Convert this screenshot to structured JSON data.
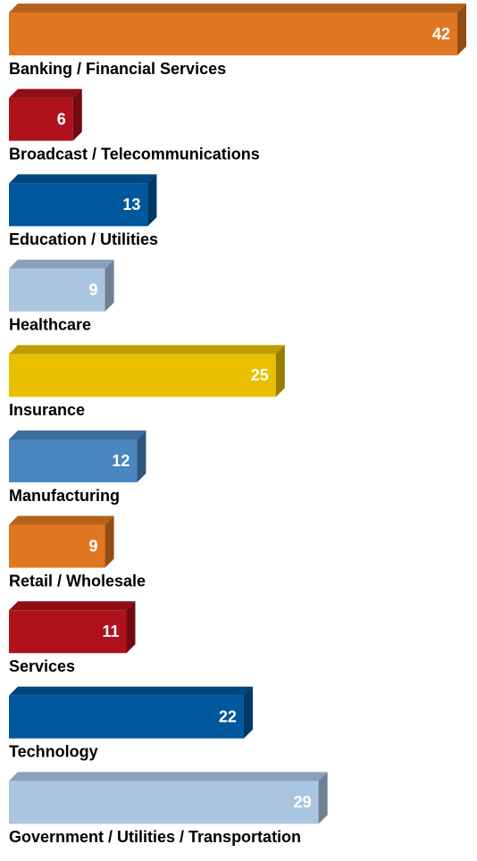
{
  "chart_data": {
    "type": "bar3d",
    "categories": [
      "Banking / Financial Services",
      "Broadcast / Telecommunications",
      "Education / Utilities",
      "Healthcare",
      "Insurance",
      "Manufacturing",
      "Retail / Wholesale",
      "Services",
      "Technology",
      "Government / Utilities / Transportation"
    ],
    "values": [
      42,
      6,
      13,
      9,
      25,
      12,
      9,
      11,
      22,
      29
    ],
    "colors": [
      "#e07722",
      "#b0121b",
      "#00589c",
      "#a9c5e0",
      "#e8c000",
      "#4a86c0",
      "#e07722",
      "#b0121b",
      "#00589c",
      "#a9c5e0"
    ]
  }
}
